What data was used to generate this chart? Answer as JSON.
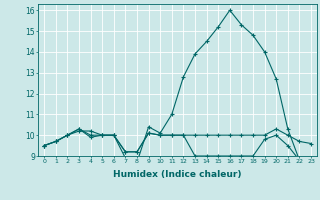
{
  "title": "",
  "xlabel": "Humidex (Indice chaleur)",
  "ylabel": "",
  "background_color": "#cce8e8",
  "grid_color": "#ffffff",
  "line_color": "#006666",
  "xlim": [
    -0.5,
    23.5
  ],
  "ylim": [
    9,
    16.3
  ],
  "yticks": [
    9,
    10,
    11,
    12,
    13,
    14,
    15,
    16
  ],
  "xticks": [
    0,
    1,
    2,
    3,
    4,
    5,
    6,
    7,
    8,
    9,
    10,
    11,
    12,
    13,
    14,
    15,
    16,
    17,
    18,
    19,
    20,
    21,
    22,
    23
  ],
  "series": [
    [
      9.5,
      9.7,
      10.0,
      10.2,
      10.2,
      10.0,
      10.0,
      9.2,
      9.2,
      10.1,
      10.0,
      10.0,
      10.0,
      10.0,
      10.0,
      10.0,
      10.0,
      10.0,
      10.0,
      10.0,
      10.3,
      10.0,
      9.7,
      9.6
    ],
    [
      9.5,
      9.7,
      10.0,
      10.3,
      10.0,
      10.0,
      10.0,
      9.2,
      9.2,
      10.1,
      10.0,
      10.0,
      10.0,
      9.0,
      9.0,
      9.0,
      9.0,
      9.0,
      9.0,
      9.8,
      10.0,
      9.5,
      8.8,
      8.7
    ],
    [
      9.5,
      9.7,
      10.0,
      10.3,
      9.9,
      10.0,
      10.0,
      8.9,
      8.7,
      10.4,
      10.1,
      11.0,
      12.8,
      13.9,
      14.5,
      15.2,
      16.0,
      15.3,
      14.8,
      14.0,
      12.7,
      10.3,
      8.8,
      8.7
    ]
  ]
}
